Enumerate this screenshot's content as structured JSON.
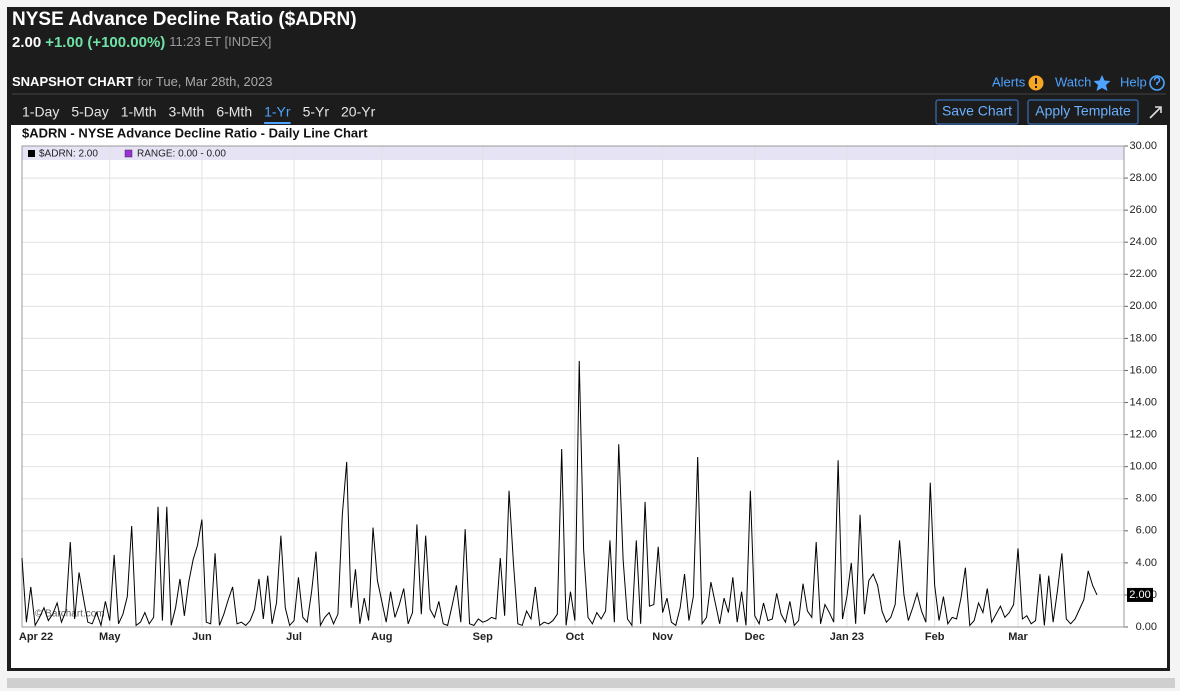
{
  "header": {
    "title": "NYSE Advance Decline Ratio ($ADRN)",
    "price": "2.00",
    "change": "+1.00 (+100.00%)",
    "time": "11:23 ET [INDEX]"
  },
  "toolbar": {
    "label": "SNAPSHOT CHART",
    "date": "for Tue, Mar 28th, 2023",
    "links": [
      "Alerts",
      "Watch",
      "Help"
    ]
  },
  "tabs": {
    "items": [
      "1-Day",
      "5-Day",
      "1-Mth",
      "3-Mth",
      "6-Mth",
      "1-Yr",
      "5-Yr",
      "20-Yr"
    ],
    "active": 5
  },
  "buttons": [
    "Save Chart",
    "Apply Template"
  ],
  "chart_data": {
    "type": "line",
    "title": "$ADRN - NYSE Advance Decline Ratio - Daily Line Chart",
    "watermark": "© Barchart.com",
    "range_label": "RANGE: 0.00 - 0.00",
    "range_color": "#9b30d9",
    "last_label": "2.00",
    "grid": true,
    "ylim": [
      0,
      30
    ],
    "yticks": [
      {
        "value": 0,
        "label": "0.00"
      },
      {
        "value": 2,
        "label": "2.00"
      },
      {
        "value": 4,
        "label": "4.00"
      },
      {
        "value": 6,
        "label": "6.00"
      },
      {
        "value": 8,
        "label": "8.00"
      },
      {
        "value": 10,
        "label": "10.00"
      },
      {
        "value": 12,
        "label": "12.00"
      },
      {
        "value": 14,
        "label": "14.00"
      },
      {
        "value": 16,
        "label": "16.00"
      },
      {
        "value": 18,
        "label": "18.00"
      },
      {
        "value": 20,
        "label": "20.00"
      },
      {
        "value": 22,
        "label": "22.00"
      },
      {
        "value": 24,
        "label": "24.00"
      },
      {
        "value": 26,
        "label": "26.00"
      },
      {
        "value": 28,
        "label": "28.00"
      },
      {
        "value": 30,
        "label": "30.00"
      }
    ],
    "categories": [
      "Apr 22",
      null,
      null,
      null,
      null,
      null,
      null,
      null,
      null,
      null,
      null,
      null,
      null,
      null,
      null,
      null,
      null,
      null,
      null,
      null,
      "May",
      null,
      null,
      null,
      null,
      null,
      null,
      null,
      null,
      null,
      null,
      null,
      null,
      null,
      null,
      null,
      null,
      null,
      null,
      null,
      null,
      "Jun",
      null,
      null,
      null,
      null,
      null,
      null,
      null,
      null,
      null,
      null,
      null,
      null,
      null,
      null,
      null,
      null,
      null,
      null,
      null,
      null,
      "Jul",
      null,
      null,
      null,
      null,
      null,
      null,
      null,
      null,
      null,
      null,
      null,
      null,
      null,
      null,
      null,
      null,
      null,
      null,
      null,
      "Aug",
      null,
      null,
      null,
      null,
      null,
      null,
      null,
      null,
      null,
      null,
      null,
      null,
      null,
      null,
      null,
      null,
      null,
      null,
      null,
      null,
      null,
      null,
      "Sep",
      null,
      null,
      null,
      null,
      null,
      null,
      null,
      null,
      null,
      null,
      null,
      null,
      null,
      null,
      null,
      null,
      null,
      null,
      null,
      null,
      "Oct",
      null,
      null,
      null,
      null,
      null,
      null,
      null,
      null,
      null,
      null,
      null,
      null,
      null,
      null,
      null,
      null,
      null,
      null,
      null,
      "Nov",
      null,
      null,
      null,
      null,
      null,
      null,
      null,
      null,
      null,
      null,
      null,
      null,
      null,
      null,
      null,
      null,
      null,
      null,
      null,
      null,
      "Dec",
      null,
      null,
      null,
      null,
      null,
      null,
      null,
      null,
      null,
      null,
      null,
      null,
      null,
      null,
      null,
      null,
      null,
      null,
      null,
      null,
      "Jan 23",
      null,
      null,
      null,
      null,
      null,
      null,
      null,
      null,
      null,
      null,
      null,
      null,
      null,
      null,
      null,
      null,
      null,
      null,
      null,
      "Feb",
      null,
      null,
      null,
      null,
      null,
      null,
      null,
      null,
      null,
      null,
      null,
      null,
      null,
      null,
      null,
      null,
      null,
      null,
      "Mar",
      null,
      null,
      null,
      null,
      null,
      null,
      null,
      null,
      null,
      null,
      null,
      null,
      null,
      null,
      null,
      null,
      null,
      null
    ],
    "series": [
      {
        "name": "$ADRN: 2.00",
        "color": "#000000",
        "values": [
          4.3,
          0.3,
          2.5,
          0.1,
          0.6,
          1.2,
          0.4,
          0.8,
          1.5,
          0.3,
          1.0,
          5.3,
          0.5,
          3.4,
          1.8,
          0.3,
          0.2,
          0.9,
          0.1,
          1.6,
          0.4,
          4.5,
          0.2,
          0.8,
          1.9,
          6.3,
          0.1,
          0.3,
          0.9,
          0.2,
          0.6,
          7.5,
          0.4,
          7.5,
          0.1,
          1.2,
          3.0,
          0.7,
          2.8,
          4.2,
          5.1,
          6.7,
          0.3,
          0.2,
          4.6,
          0.1,
          0.8,
          1.7,
          2.5,
          0.2,
          0.3,
          0.1,
          0.4,
          1.1,
          3.0,
          0.5,
          3.2,
          0.2,
          1.5,
          5.7,
          1.2,
          0.1,
          0.4,
          3.1,
          0.6,
          0.3,
          2.2,
          4.7,
          0.1,
          0.6,
          0.9,
          0.2,
          0.8,
          7.0,
          10.3,
          1.2,
          3.6,
          0.2,
          1.8,
          0.4,
          6.2,
          2.9,
          1.6,
          0.3,
          2.2,
          0.6,
          1.4,
          2.4,
          0.2,
          0.9,
          6.4,
          0.8,
          5.7,
          1.1,
          0.6,
          1.6,
          0.2,
          0.1,
          1.3,
          2.6,
          0.3,
          6.1,
          0.2,
          0.1,
          0.5,
          0.3,
          0.4,
          0.6,
          0.5,
          4.3,
          0.7,
          8.5,
          4.0,
          0.2,
          0.1,
          1.0,
          0.5,
          2.5,
          0.1,
          0.3,
          0.2,
          0.4,
          0.8,
          11.1,
          0.1,
          2.2,
          0.4,
          16.6,
          4.8,
          0.6,
          0.2,
          0.9,
          0.5,
          1.0,
          5.4,
          0.3,
          11.4,
          4.2,
          0.5,
          0.1,
          5.4,
          0.2,
          7.8,
          1.3,
          1.4,
          5.0,
          0.9,
          1.8,
          0.3,
          0.1,
          1.2,
          3.3,
          0.4,
          1.9,
          10.6,
          0.2,
          0.6,
          2.8,
          1.5,
          0.2,
          1.8,
          0.9,
          3.1,
          0.3,
          2.2,
          0.1,
          8.5,
          0.7,
          0.2,
          1.5,
          0.4,
          0.5,
          2.1,
          0.8,
          0.3,
          1.6,
          0.1,
          0.4,
          2.7,
          1.0,
          0.6,
          5.3,
          0.2,
          1.4,
          0.9,
          0.3,
          10.4,
          0.5,
          1.9,
          4.0,
          0.2,
          7.0,
          0.8,
          2.9,
          3.3,
          2.6,
          1.0,
          0.3,
          0.6,
          1.4,
          5.4,
          2.0,
          0.4,
          1.2,
          2.1,
          1.0,
          0.3,
          9.0,
          2.6,
          0.4,
          1.9,
          0.2,
          0.6,
          0.5,
          1.8,
          3.7,
          0.1,
          0.4,
          1.5,
          0.9,
          2.4,
          0.3,
          0.8,
          1.3,
          0.6,
          0.9,
          1.4,
          4.9,
          0.5,
          0.7,
          0.2,
          0.4,
          3.3,
          0.1,
          3.2,
          0.3,
          2.3,
          4.6,
          0.5,
          0.2,
          0.5,
          1.1,
          1.7,
          3.5,
          2.6,
          2.0
        ]
      }
    ]
  }
}
